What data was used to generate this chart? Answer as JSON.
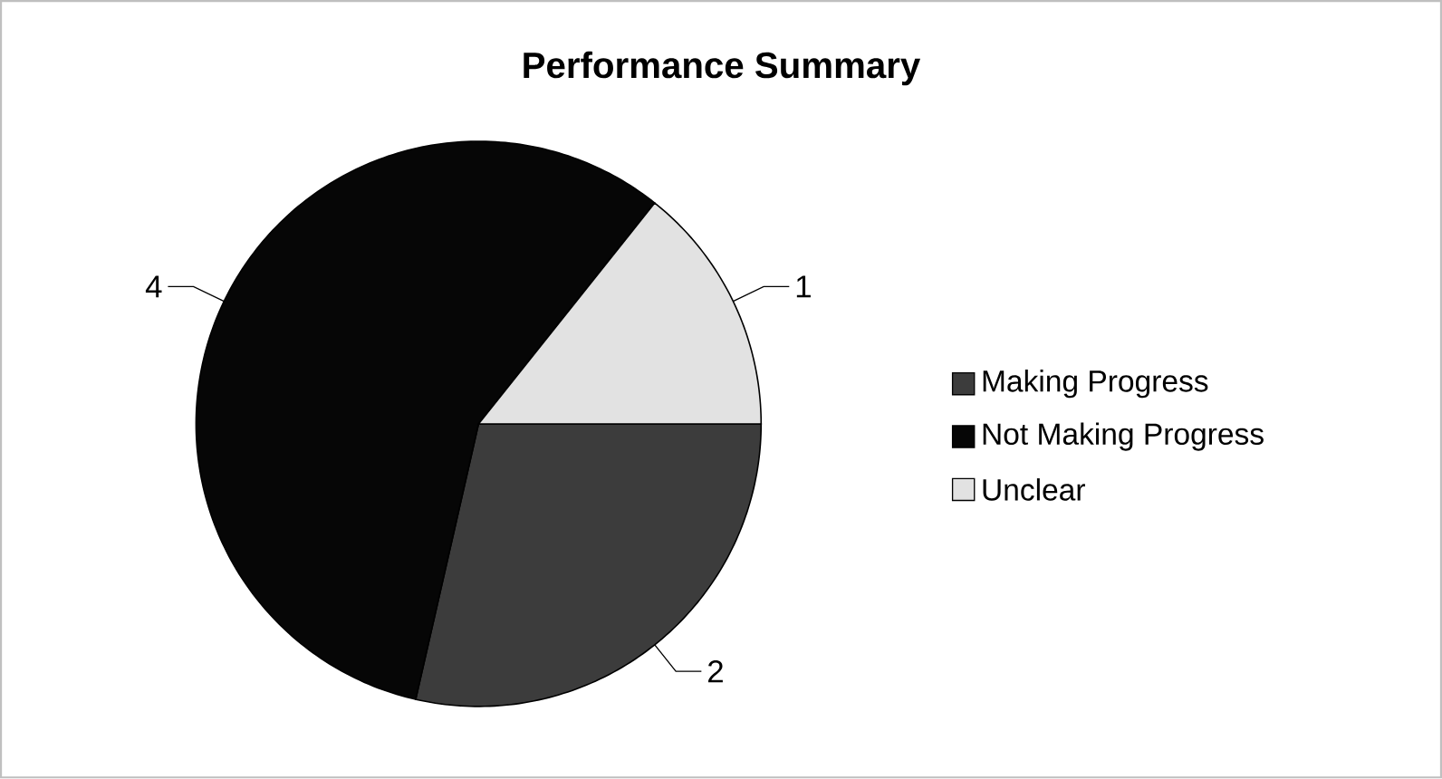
{
  "chart_data": {
    "type": "pie",
    "title": "Performance Summary",
    "categories": [
      "Making Progress",
      "Not Making Progress",
      "Unclear"
    ],
    "values": [
      2,
      4,
      1
    ],
    "colors": [
      "#3c3c3c",
      "#060606",
      "#e2e2e2"
    ],
    "data_labels": true,
    "legend": "right"
  }
}
